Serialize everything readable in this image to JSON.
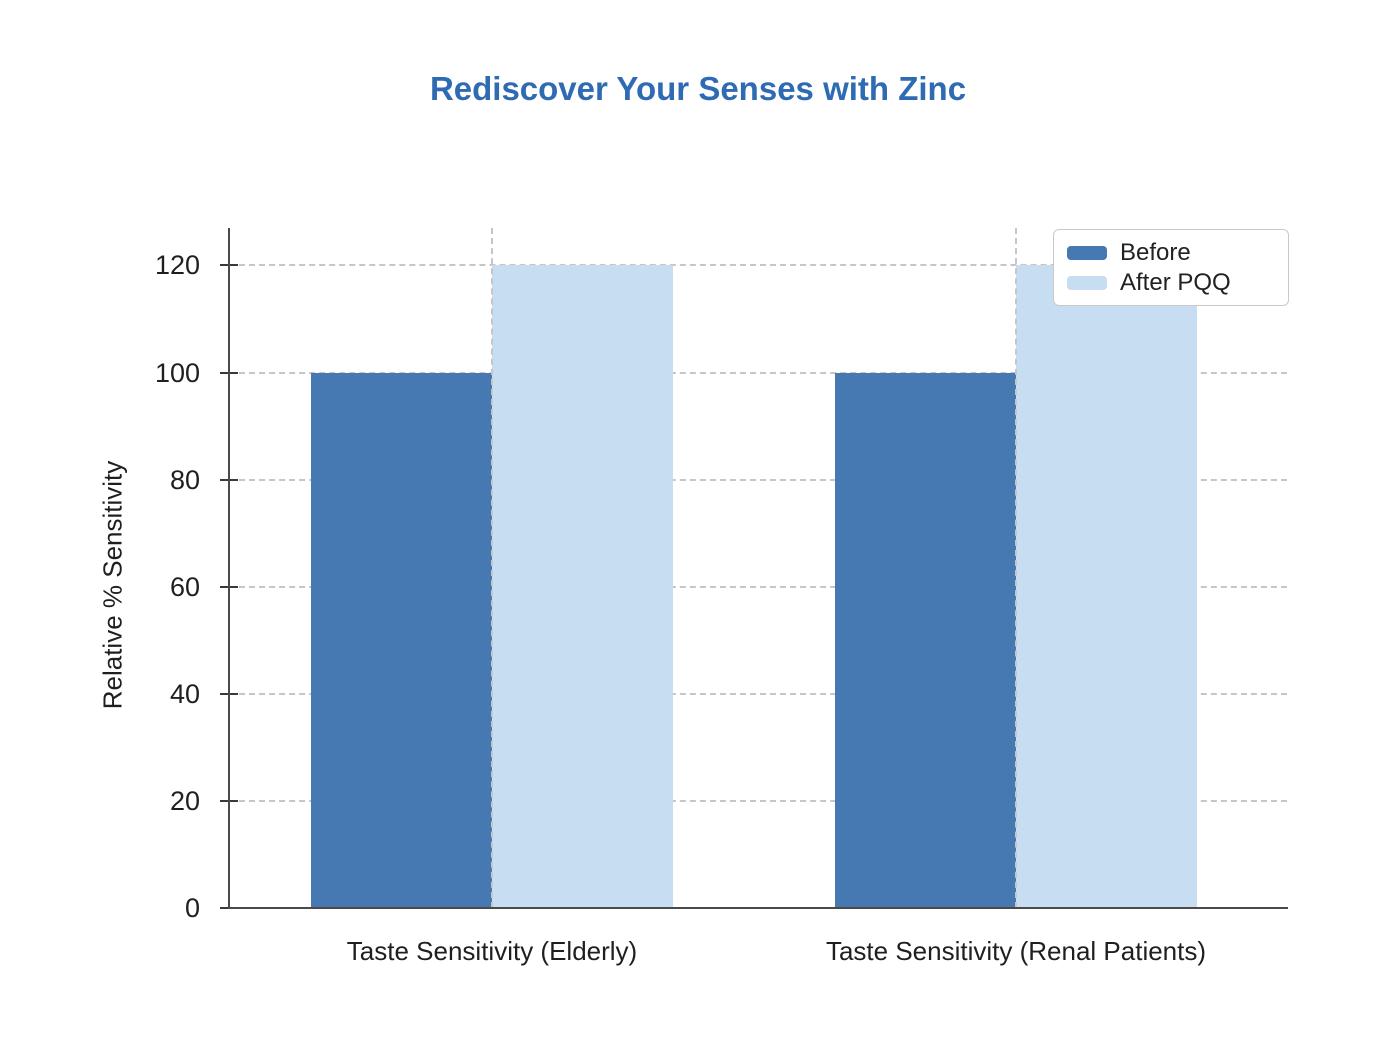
{
  "chart_data": {
    "type": "bar",
    "title": "Rediscover Your Senses with Zinc",
    "categories": [
      "Taste Sensitivity (Elderly)",
      "Taste Sensitivity (Renal Patients)"
    ],
    "series": [
      {
        "name": "Before",
        "color": "#4679B2",
        "values": [
          100,
          100
        ]
      },
      {
        "name": "After PQQ",
        "color": "#C7DDF2",
        "values": [
          120,
          120
        ]
      }
    ],
    "xlabel": "",
    "ylabel": "Relative % Sensitivity",
    "ylim": [
      0,
      127
    ],
    "yticks": [
      0,
      20,
      40,
      60,
      80,
      100,
      120
    ],
    "grid": {
      "horizontal": "dashed light-gray at each y tick above 0",
      "vertical": "dashed light-gray at each category center"
    },
    "legend": {
      "position": "top-right-inside-plot",
      "entries": [
        "Before",
        "After PQQ"
      ]
    }
  },
  "colors": {
    "background": "#ffffff",
    "title": "#2F6BB3",
    "axis": "#4a4a4a",
    "gridline": "#c6c6c6",
    "tick_text": "#1f1f1f",
    "legend_border": "#c9c9c9",
    "legend_text": "#222222"
  }
}
